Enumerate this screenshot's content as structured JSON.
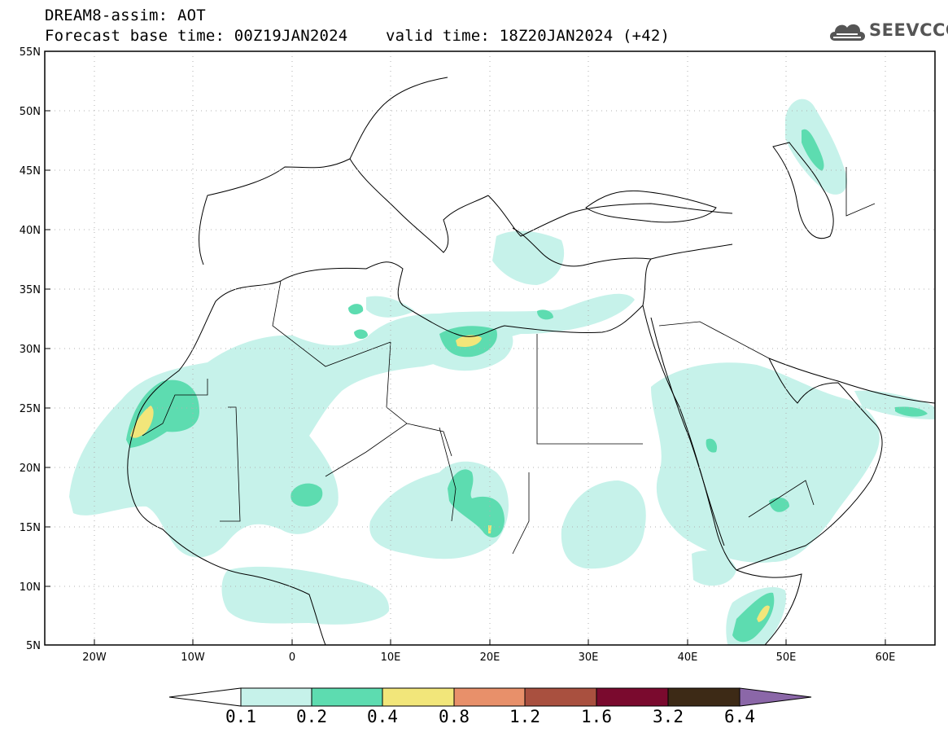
{
  "header": {
    "title_line1": "DREAM8-assim: AOT",
    "forecast_base": "Forecast base time: 00Z19JAN2024",
    "valid_time": "valid time: 18Z20JAN2024 (+42)"
  },
  "logo": {
    "text": "SEEVCCC",
    "icon": "cloud-icon"
  },
  "map": {
    "lon_range": [
      -25,
      65
    ],
    "lat_range": [
      5,
      55
    ],
    "lat_labels": [
      "55N",
      "50N",
      "45N",
      "40N",
      "35N",
      "30N",
      "25N",
      "20N",
      "15N",
      "10N",
      "5N"
    ],
    "lon_labels": [
      "20W",
      "10W",
      "0",
      "10E",
      "20E",
      "30E",
      "40E",
      "50E",
      "60E"
    ],
    "grid": "dotted"
  },
  "colorbar": {
    "levels": [
      "0.1",
      "0.2",
      "0.4",
      "0.8",
      "1.2",
      "1.6",
      "3.2",
      "6.4"
    ],
    "colors": [
      "#ffffff",
      "#c6f2ea",
      "#5ddcb0",
      "#f2e67a",
      "#e8906a",
      "#a9503f",
      "#7a0a2e",
      "#3d2a16",
      "#8b67a8"
    ]
  }
}
